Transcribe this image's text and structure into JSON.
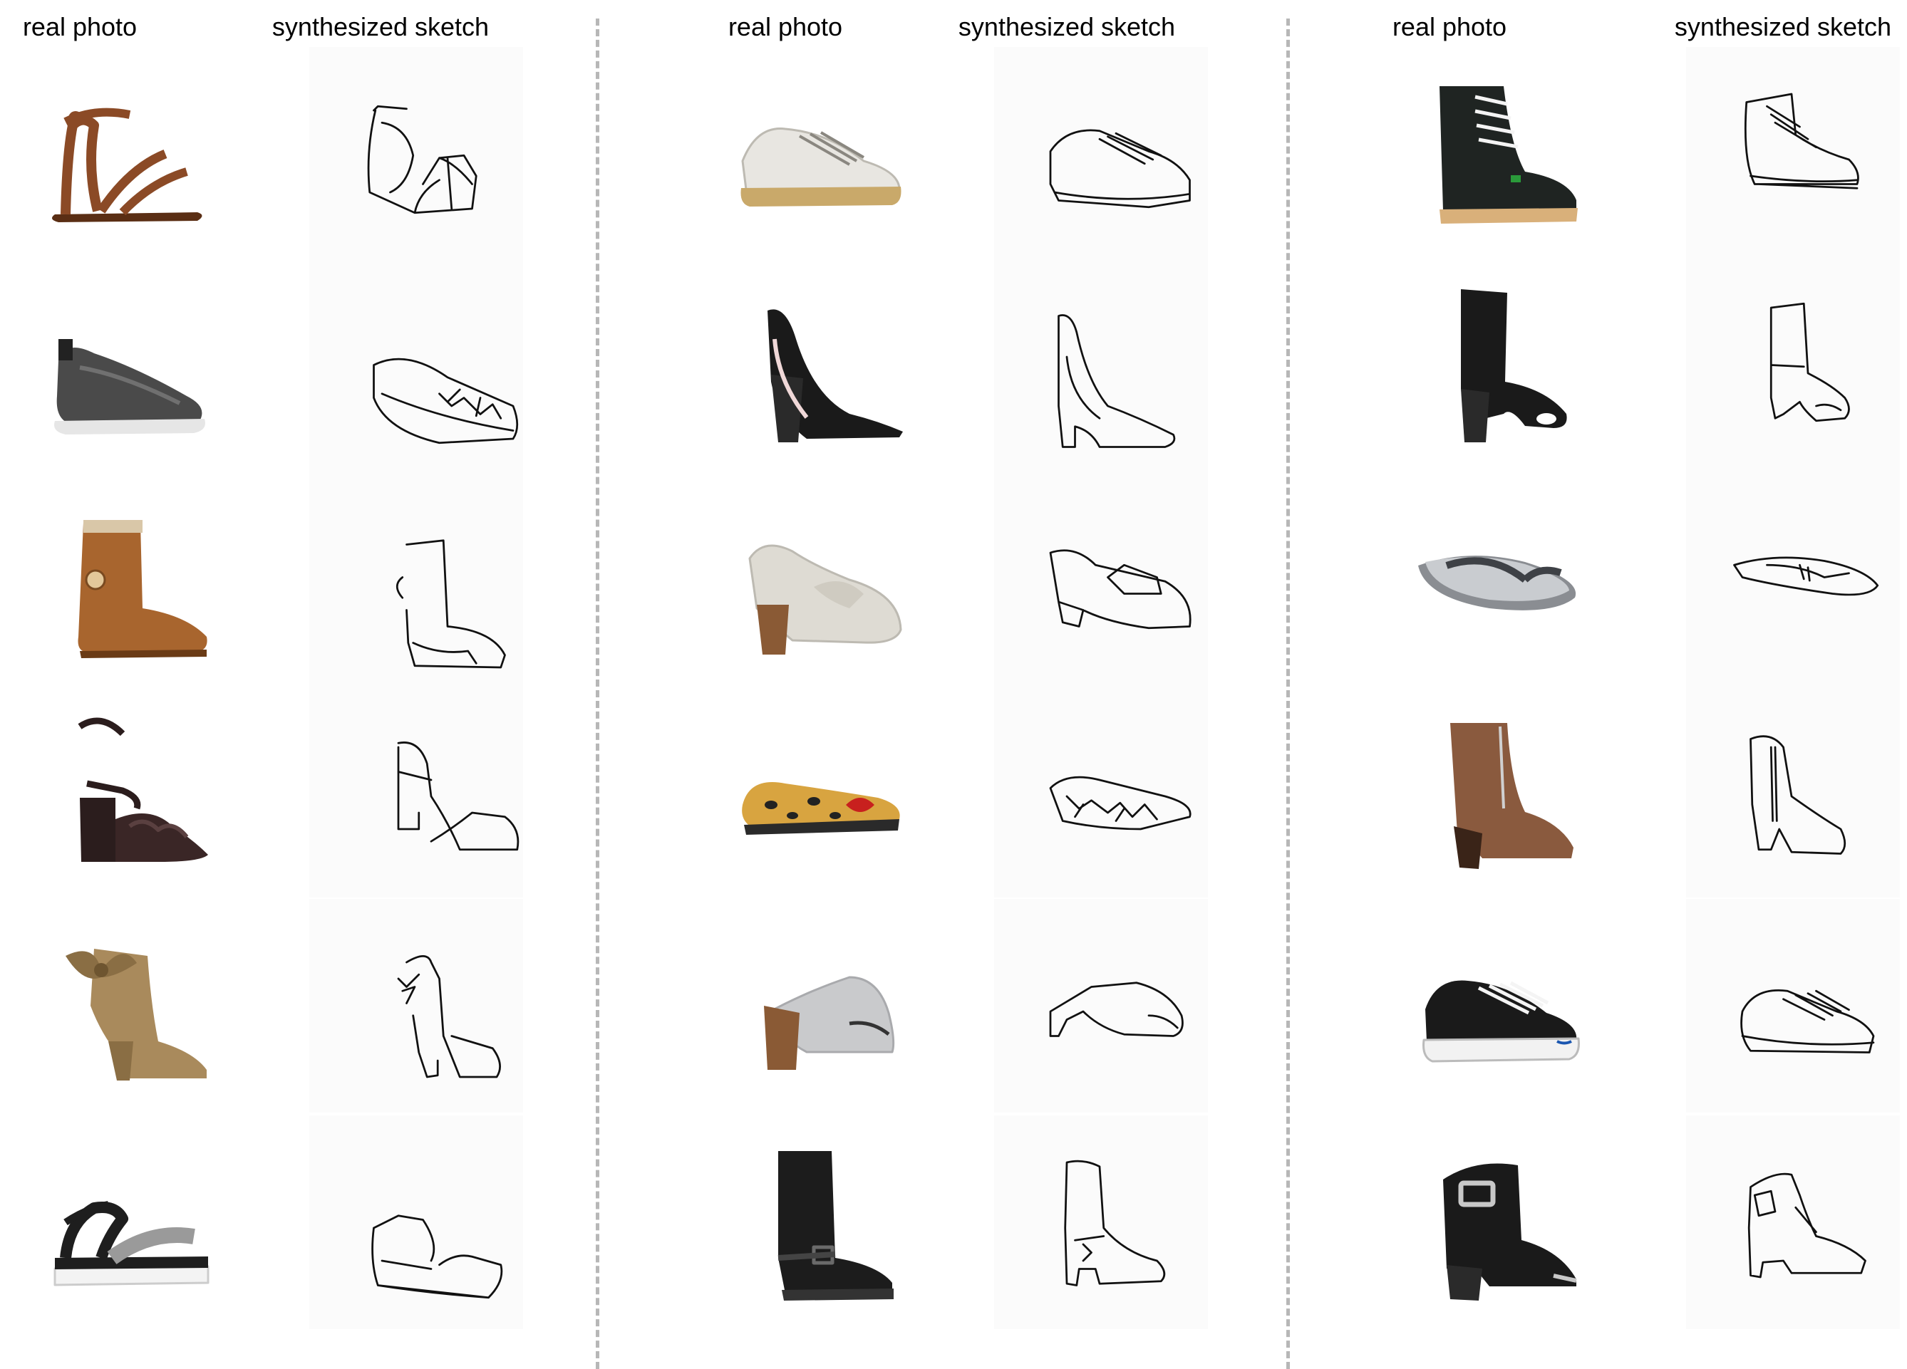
{
  "headers": {
    "photo_label": "real photo",
    "sketch_label": "synthesized sketch"
  },
  "colors": {
    "divider": "#b7b7b7",
    "sketch_stroke": "#111111"
  },
  "groups": [
    {
      "shoes": [
        {
          "kind": "ankle-strap-sandal",
          "color": "#8b4a26",
          "accent": "#5a2e14"
        },
        {
          "kind": "slip-on-knit-sneaker",
          "color": "#4a4a4a",
          "accent": "#e6e6e6"
        },
        {
          "kind": "sheepskin-boot",
          "color": "#a8652e",
          "accent": "#d9c7a8"
        },
        {
          "kind": "ruffle-heeled-sandal",
          "color": "#2b1d1d",
          "accent": "#3a2626"
        },
        {
          "kind": "bow-ankle-boot",
          "color": "#a98a5c",
          "accent": "#8a6e44"
        },
        {
          "kind": "flatform-sandal",
          "color": "#1e1e1e",
          "accent": "#9a9a9a"
        }
      ]
    },
    {
      "shoes": [
        {
          "kind": "leather-sneaker",
          "color": "#e8e6e1",
          "accent": "#c9a96a"
        },
        {
          "kind": "pointed-block-heel-pump",
          "color": "#1a1a1a",
          "accent": "#2a2a2a"
        },
        {
          "kind": "block-heel-loafer",
          "color": "#dedbd3",
          "accent": "#8a5a35"
        },
        {
          "kind": "leopard-ballet-flat",
          "color": "#d8a440",
          "accent": "#c8201e"
        },
        {
          "kind": "block-heel-mule",
          "color": "#c9cacc",
          "accent": "#8a5a35"
        },
        {
          "kind": "buckle-biker-boot",
          "color": "#1c1c1c",
          "accent": "#6a6a6a"
        }
      ]
    },
    {
      "shoes": [
        {
          "kind": "lace-up-work-boot",
          "color": "#1f2422",
          "accent": "#d9b07a"
        },
        {
          "kind": "peep-toe-sock-boot",
          "color": "#1a1a1a",
          "accent": "#2a2a2a"
        },
        {
          "kind": "flip-flop",
          "color": "#8a8d92",
          "accent": "#c9ccd0"
        },
        {
          "kind": "zip-ankle-boot",
          "color": "#8a5a3e",
          "accent": "#3a2418"
        },
        {
          "kind": "canvas-low-sneaker",
          "color": "#1a1a1a",
          "accent": "#f2f2f2"
        },
        {
          "kind": "buckle-chelsea-boot",
          "color": "#1a1a1a",
          "accent": "#c8c8c8"
        }
      ]
    }
  ]
}
